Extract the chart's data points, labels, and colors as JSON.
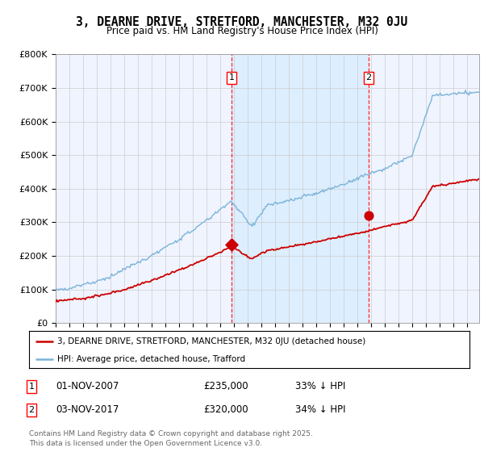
{
  "title": "3, DEARNE DRIVE, STRETFORD, MANCHESTER, M32 0JU",
  "subtitle": "Price paid vs. HM Land Registry's House Price Index (HPI)",
  "hpi_color": "#7ab4d8",
  "price_color": "#cc0000",
  "background_color": "#ffffff",
  "plot_bg_color": "#f0f4ff",
  "shaded_bg_color": "#ddeeff",
  "grid_color": "#cccccc",
  "ylim": [
    0,
    800000
  ],
  "yticks": [
    0,
    100000,
    200000,
    300000,
    400000,
    500000,
    600000,
    700000,
    800000
  ],
  "ytick_labels": [
    "£0",
    "£100K",
    "£200K",
    "£300K",
    "£400K",
    "£500K",
    "£600K",
    "£700K",
    "£800K"
  ],
  "xlim_start": 1995.0,
  "xlim_end": 2025.9,
  "sale1_x": 2007.83,
  "sale1_y": 235000,
  "sale1_label": "01-NOV-2007",
  "sale1_price": "£235,000",
  "sale1_pct": "33% ↓ HPI",
  "sale2_x": 2017.83,
  "sale2_y": 320000,
  "sale2_label": "03-NOV-2017",
  "sale2_price": "£320,000",
  "sale2_pct": "34% ↓ HPI",
  "legend_line1": "3, DEARNE DRIVE, STRETFORD, MANCHESTER, M32 0JU (detached house)",
  "legend_line2": "HPI: Average price, detached house, Trafford",
  "footer1": "Contains HM Land Registry data © Crown copyright and database right 2025.",
  "footer2": "This data is licensed under the Open Government Licence v3.0."
}
